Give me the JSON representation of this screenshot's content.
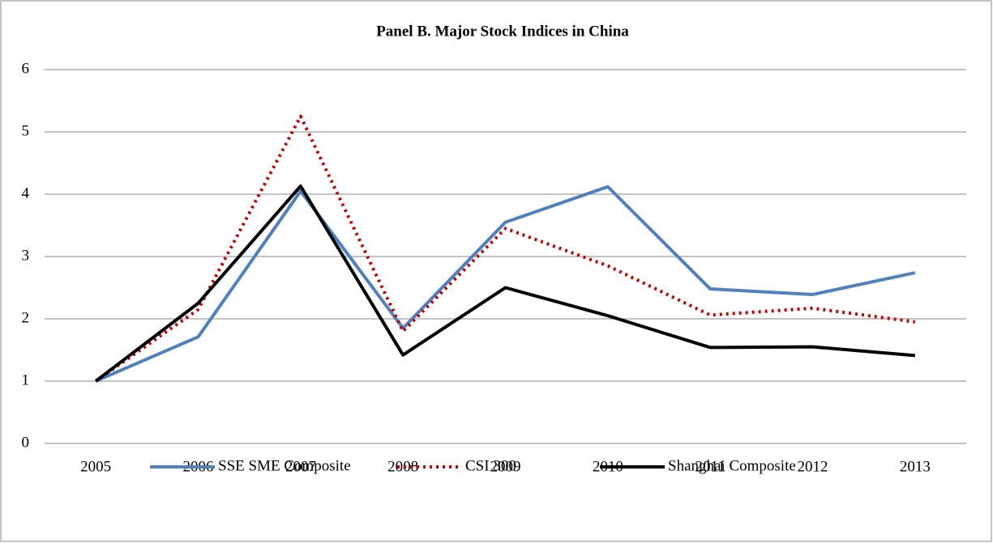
{
  "chart_data": {
    "type": "line",
    "title": "Panel B. Major Stock Indices in China",
    "categories": [
      "2005",
      "2006",
      "2007",
      "2008",
      "2009",
      "2010",
      "2011",
      "2012",
      "2013"
    ],
    "series": [
      {
        "name": "SSE SME Composite",
        "color": "#4f81bd",
        "style": "solid",
        "values": [
          1,
          1.71,
          4.05,
          1.85,
          3.55,
          4.12,
          2.48,
          2.39,
          2.74
        ]
      },
      {
        "name": "CSI 300",
        "color": "#c00000",
        "style": "dotted",
        "values": [
          1,
          2.15,
          5.25,
          1.8,
          3.45,
          2.85,
          2.06,
          2.17,
          1.95
        ]
      },
      {
        "name": "Shanghai Composite",
        "color": "#000000",
        "style": "solid",
        "values": [
          1,
          2.25,
          4.13,
          1.42,
          2.5,
          2.05,
          1.54,
          1.55,
          1.41
        ]
      }
    ],
    "ylim": [
      0,
      6
    ],
    "yticks": [
      0,
      1,
      2,
      3,
      4,
      5,
      6
    ],
    "grid": true,
    "legend": "bottom"
  }
}
